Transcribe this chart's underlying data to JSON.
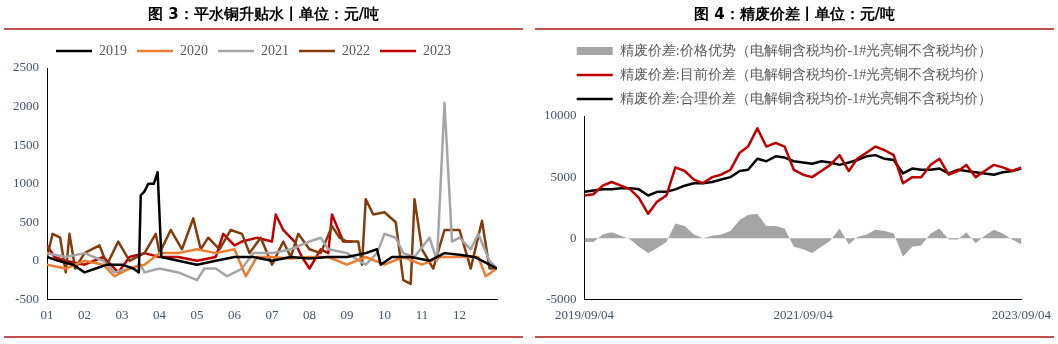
{
  "chart_data": [
    {
      "type": "line",
      "title": "图 3：平水铜升贴水丨单位：元/吨",
      "legend": "top",
      "xlim": [
        1,
        13
      ],
      "xticks": [
        {
          "value": 1,
          "label": "01"
        },
        {
          "value": 2,
          "label": "02"
        },
        {
          "value": 3,
          "label": "03"
        },
        {
          "value": 4,
          "label": "04"
        },
        {
          "value": 5,
          "label": "05"
        },
        {
          "value": 6,
          "label": "06"
        },
        {
          "value": 7,
          "label": "07"
        },
        {
          "value": 8,
          "label": "08"
        },
        {
          "value": 9,
          "label": "09"
        },
        {
          "value": 10,
          "label": "10"
        },
        {
          "value": 11,
          "label": "11"
        },
        {
          "value": 12,
          "label": "12"
        }
      ],
      "ylim": [
        -500,
        2500
      ],
      "yticks": [
        -500,
        0,
        500,
        1000,
        1500,
        2000,
        2500
      ],
      "series": [
        {
          "name": "2019",
          "color": "#000000",
          "x": [
            1,
            1.3,
            1.7,
            2.0,
            2.3,
            2.6,
            3.0,
            3.3,
            3.45,
            3.5,
            3.6,
            3.7,
            3.85,
            3.95,
            4.05,
            4.5,
            5.0,
            5.5,
            6.0,
            6.5,
            7.0,
            7.5,
            8.0,
            8.5,
            9.0,
            9.5,
            9.8,
            9.9,
            10.2,
            10.7,
            11.2,
            11.6,
            12.0,
            12.4,
            12.8,
            13
          ],
          "values": [
            50,
            0,
            -50,
            -150,
            -100,
            -50,
            -50,
            -100,
            -150,
            850,
            900,
            1000,
            1000,
            1150,
            50,
            0,
            -50,
            0,
            50,
            50,
            0,
            50,
            30,
            50,
            50,
            100,
            150,
            -50,
            50,
            50,
            0,
            100,
            80,
            50,
            -50,
            -100
          ]
        },
        {
          "name": "2020",
          "color": "#ed7d31",
          "x": [
            1,
            1.5,
            2,
            2.5,
            2.8,
            3.2,
            3.6,
            4.0,
            4.5,
            5,
            5.5,
            6,
            6.3,
            6.6,
            7,
            7.5,
            8,
            8.5,
            9,
            9.5,
            10,
            10.5,
            11,
            11.5,
            12,
            12.5,
            12.7,
            13
          ],
          "values": [
            -50,
            -100,
            0,
            -50,
            -200,
            -100,
            -50,
            100,
            100,
            150,
            100,
            150,
            -200,
            50,
            50,
            30,
            50,
            50,
            -50,
            50,
            -50,
            50,
            -50,
            50,
            50,
            50,
            -200,
            -100
          ]
        },
        {
          "name": "2021",
          "color": "#a5a5a5",
          "x": [
            1,
            1.5,
            2,
            2.5,
            2.8,
            3.2,
            3.5,
            3.6,
            4,
            4.5,
            5,
            5.2,
            5.5,
            5.8,
            6.2,
            6.5,
            7,
            7.5,
            8,
            8.3,
            8.5,
            9,
            9.5,
            9.8,
            10,
            10.3,
            10.5,
            10.8,
            11.2,
            11.4,
            11.6,
            11.8,
            12,
            12.3,
            12.5,
            12.8,
            13
          ],
          "values": [
            100,
            50,
            100,
            0,
            -150,
            -100,
            -50,
            -150,
            -100,
            -150,
            -250,
            -100,
            -100,
            -200,
            -100,
            100,
            100,
            150,
            250,
            300,
            150,
            100,
            -50,
            100,
            350,
            300,
            100,
            50,
            300,
            0,
            2050,
            250,
            300,
            150,
            350,
            0,
            -100
          ]
        },
        {
          "name": "2022",
          "color": "#843c0c",
          "x": [
            1,
            1.15,
            1.35,
            1.5,
            1.6,
            1.75,
            2,
            2.4,
            2.6,
            2.9,
            3.2,
            3.6,
            3.9,
            4,
            4.3,
            4.6,
            4.9,
            5.1,
            5.3,
            5.6,
            5.9,
            6.2,
            6.4,
            6.7,
            7.0,
            7.3,
            7.5,
            7.7,
            8.0,
            8.3,
            8.6,
            8.8,
            9,
            9.3,
            9.4,
            9.5,
            9.7,
            10,
            10.3,
            10.5,
            10.7,
            10.8,
            11,
            11.3,
            11.6,
            12,
            12.3,
            12.6,
            12.8,
            13
          ],
          "values": [
            50,
            350,
            300,
            -150,
            350,
            -100,
            100,
            200,
            -50,
            250,
            0,
            100,
            350,
            100,
            400,
            150,
            550,
            150,
            300,
            150,
            400,
            350,
            100,
            300,
            -50,
            250,
            50,
            350,
            150,
            100,
            450,
            300,
            250,
            250,
            -50,
            800,
            600,
            630,
            500,
            -250,
            -300,
            800,
            150,
            -100,
            400,
            400,
            -100,
            520,
            -100,
            -100
          ]
        },
        {
          "name": "2023",
          "color": "#c00000",
          "x": [
            1,
            1.2,
            1.5,
            2,
            2.5,
            2.9,
            3.2,
            3.6,
            4,
            4.5,
            5,
            5.5,
            5.7,
            6,
            6.2,
            6.6,
            7,
            7.1,
            7.3,
            7.6,
            7.8,
            8,
            8.3,
            8.5,
            8.6,
            8.9,
            9.15
          ],
          "values": [
            200,
            50,
            0,
            -50,
            50,
            -150,
            50,
            100,
            50,
            50,
            0,
            50,
            350,
            200,
            250,
            300,
            250,
            600,
            400,
            250,
            50,
            -100,
            150,
            100,
            600,
            250,
            250
          ]
        }
      ]
    },
    {
      "type": "line",
      "title": "图 4：精废价差丨单位：元/吨",
      "legend": "top",
      "xlim": [
        "2019-09-04",
        "2023-09-04"
      ],
      "xticks": [
        {
          "value": "2019-09-04",
          "label": "2019/09/04"
        },
        {
          "value": "2021-09-04",
          "label": "2021/09/04"
        },
        {
          "value": "2023-09-04",
          "label": "2023/09/04"
        }
      ],
      "ylim": [
        -5000,
        10000
      ],
      "yticks": [
        -5000,
        0,
        5000,
        10000
      ],
      "x": [
        "2019-09-04",
        "2019-10-04",
        "2019-11-04",
        "2019-12-04",
        "2020-01-04",
        "2020-02-04",
        "2020-03-04",
        "2020-04-04",
        "2020-05-04",
        "2020-06-04",
        "2020-07-04",
        "2020-08-04",
        "2020-09-04",
        "2020-10-04",
        "2020-11-04",
        "2020-12-04",
        "2021-01-04",
        "2021-02-04",
        "2021-03-04",
        "2021-04-04",
        "2021-05-04",
        "2021-06-04",
        "2021-07-04",
        "2021-08-04",
        "2021-09-04",
        "2021-10-04",
        "2021-11-04",
        "2021-12-04",
        "2022-01-04",
        "2022-02-04",
        "2022-03-04",
        "2022-04-04",
        "2022-05-04",
        "2022-06-04",
        "2022-07-04",
        "2022-08-04",
        "2022-09-04",
        "2022-10-04",
        "2022-11-04",
        "2022-12-04",
        "2023-01-04",
        "2023-02-04",
        "2023-03-04",
        "2023-04-04",
        "2023-05-04",
        "2023-06-04",
        "2023-07-04",
        "2023-08-04",
        "2023-09-04"
      ],
      "series": [
        {
          "name": "精废价差:价格优势（电解铜含税均价-1#光亮铜不含税均价）",
          "type": "area",
          "color": "#a5a5a5",
          "values": [
            -300,
            -300,
            300,
            500,
            200,
            -100,
            -700,
            -1200,
            -800,
            -300,
            1200,
            1000,
            300,
            0,
            200,
            300,
            600,
            1500,
            1900,
            2000,
            1000,
            1000,
            800,
            -700,
            -900,
            -1200,
            -700,
            -200,
            800,
            -500,
            100,
            300,
            700,
            600,
            400,
            -1500,
            -700,
            -600,
            400,
            800,
            -100,
            -100,
            500,
            -400,
            200,
            700,
            400,
            -100,
            -500
          ]
        },
        {
          "name": "精废价差:目前价差（电解铜含税均价-1#光亮铜不含税均价）",
          "color": "#c00000",
          "values": [
            3500,
            3600,
            4300,
            4600,
            4300,
            4000,
            3300,
            2000,
            3000,
            3500,
            5800,
            5500,
            4800,
            4500,
            5000,
            5200,
            5600,
            7000,
            7500,
            9000,
            7500,
            7800,
            7500,
            5600,
            5200,
            5000,
            5500,
            6000,
            6800,
            5500,
            6500,
            7000,
            7500,
            7200,
            6800,
            4500,
            5000,
            5000,
            6000,
            6500,
            5200,
            5500,
            6000,
            5000,
            5500,
            6000,
            5800,
            5500,
            5800
          ]
        },
        {
          "name": "精废价差:合理价差（电解铜含税均价-1#光亮铜不含税均价）",
          "color": "#000000",
          "values": [
            3800,
            3900,
            4000,
            4000,
            4100,
            4100,
            4000,
            3500,
            3800,
            3800,
            4000,
            4300,
            4500,
            4500,
            4600,
            4800,
            5000,
            5500,
            5600,
            6500,
            6300,
            6700,
            6600,
            6300,
            6200,
            6100,
            6300,
            6200,
            6000,
            6200,
            6400,
            6700,
            6800,
            6500,
            6400,
            5300,
            5700,
            5600,
            5600,
            5700,
            5300,
            5600,
            5500,
            5400,
            5300,
            5200,
            5400,
            5500,
            5700
          ]
        }
      ]
    }
  ]
}
